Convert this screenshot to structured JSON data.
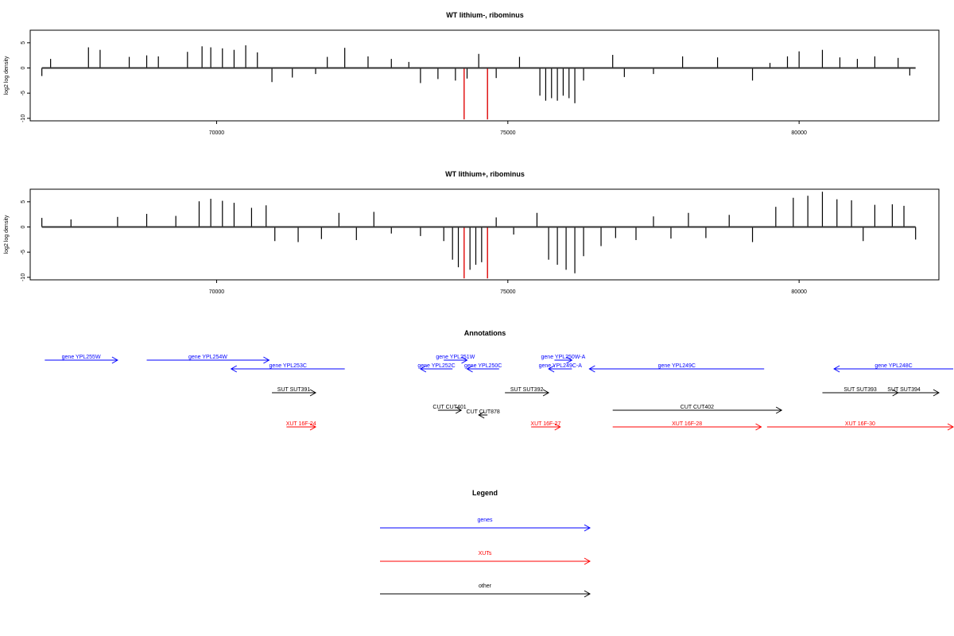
{
  "chart_data": [
    {
      "type": "bar",
      "title": "WT lithium-, ribominus",
      "xlabel": "",
      "ylabel": "log2 log density",
      "xlim": [
        66800,
        82400
      ],
      "ylim": [
        -10.5,
        7.5
      ],
      "xticks": [
        70000,
        75000,
        80000
      ],
      "yticks": [
        5,
        0,
        -5,
        -10
      ],
      "baseline": 0,
      "bars": [
        [
          67000,
          -1.6
        ],
        [
          67150,
          1.8
        ],
        [
          67800,
          4.1
        ],
        [
          68000,
          3.6
        ],
        [
          68500,
          2.2
        ],
        [
          68800,
          2.5
        ],
        [
          69000,
          2.3
        ],
        [
          69500,
          3.2
        ],
        [
          69750,
          4.3
        ],
        [
          69900,
          4.1
        ],
        [
          70100,
          3.9
        ],
        [
          70300,
          3.6
        ],
        [
          70500,
          4.5
        ],
        [
          70700,
          3.1
        ],
        [
          70950,
          -2.8
        ],
        [
          71300,
          -1.9
        ],
        [
          71700,
          -1.2
        ],
        [
          71900,
          2.2
        ],
        [
          72200,
          4.0
        ],
        [
          72600,
          2.3
        ],
        [
          73000,
          1.8
        ],
        [
          73300,
          1.2
        ],
        [
          73500,
          -3.0
        ],
        [
          73800,
          -2.2
        ],
        [
          74100,
          -2.5
        ],
        [
          74250,
          -10.2
        ],
        [
          74300,
          -2.1
        ],
        [
          74500,
          2.8
        ],
        [
          74650,
          -10.2
        ],
        [
          74800,
          -2.0
        ],
        [
          75200,
          2.2
        ],
        [
          75550,
          -5.5
        ],
        [
          75650,
          -6.5
        ],
        [
          75750,
          -6.0
        ],
        [
          75850,
          -6.5
        ],
        [
          75950,
          -5.5
        ],
        [
          76050,
          -6.0
        ],
        [
          76150,
          -7.0
        ],
        [
          76300,
          -2.5
        ],
        [
          76800,
          2.6
        ],
        [
          77000,
          -1.8
        ],
        [
          77500,
          -1.2
        ],
        [
          78000,
          2.3
        ],
        [
          78600,
          2.1
        ],
        [
          79200,
          -2.5
        ],
        [
          79500,
          1.0
        ],
        [
          79800,
          2.3
        ],
        [
          80000,
          3.3
        ],
        [
          80400,
          3.6
        ],
        [
          80700,
          2.1
        ],
        [
          81000,
          1.8
        ],
        [
          81300,
          2.3
        ],
        [
          81700,
          2.0
        ],
        [
          81900,
          -1.5
        ]
      ],
      "highlight_bars": [
        [
          74250,
          -10.2
        ],
        [
          74650,
          -10.2
        ]
      ]
    },
    {
      "type": "bar",
      "title": "WT lithium+, ribominus",
      "xlabel": "",
      "ylabel": "log2 log density",
      "xlim": [
        66800,
        82400
      ],
      "ylim": [
        -10.5,
        7.5
      ],
      "xticks": [
        70000,
        75000,
        80000
      ],
      "yticks": [
        5,
        0,
        -5,
        -10
      ],
      "baseline": 0,
      "bars": [
        [
          67000,
          1.8
        ],
        [
          67500,
          1.5
        ],
        [
          68300,
          2.0
        ],
        [
          68800,
          2.6
        ],
        [
          69300,
          2.2
        ],
        [
          69700,
          5.1
        ],
        [
          69900,
          5.6
        ],
        [
          70100,
          5.2
        ],
        [
          70300,
          4.8
        ],
        [
          70600,
          3.8
        ],
        [
          70850,
          4.3
        ],
        [
          71000,
          -2.8
        ],
        [
          71400,
          -3.0
        ],
        [
          71800,
          -2.4
        ],
        [
          72100,
          2.8
        ],
        [
          72400,
          -2.6
        ],
        [
          72700,
          3.0
        ],
        [
          73000,
          -1.3
        ],
        [
          73500,
          -1.8
        ],
        [
          73900,
          -2.8
        ],
        [
          74050,
          -6.5
        ],
        [
          74150,
          -8.0
        ],
        [
          74250,
          -10.2
        ],
        [
          74350,
          -8.5
        ],
        [
          74450,
          -7.5
        ],
        [
          74550,
          -7.0
        ],
        [
          74650,
          -10.2
        ],
        [
          74800,
          1.9
        ],
        [
          75100,
          -1.5
        ],
        [
          75500,
          2.8
        ],
        [
          75700,
          -6.5
        ],
        [
          75850,
          -7.5
        ],
        [
          76000,
          -8.5
        ],
        [
          76150,
          -9.2
        ],
        [
          76300,
          -5.8
        ],
        [
          76600,
          -3.8
        ],
        [
          76850,
          -2.2
        ],
        [
          77200,
          -2.6
        ],
        [
          77500,
          2.1
        ],
        [
          77800,
          -2.3
        ],
        [
          78100,
          2.8
        ],
        [
          78400,
          -2.2
        ],
        [
          78800,
          2.4
        ],
        [
          79200,
          -3.0
        ],
        [
          79600,
          4.0
        ],
        [
          79900,
          5.8
        ],
        [
          80150,
          6.2
        ],
        [
          80400,
          7.0
        ],
        [
          80650,
          5.5
        ],
        [
          80900,
          5.3
        ],
        [
          81100,
          -2.8
        ],
        [
          81300,
          4.4
        ],
        [
          81600,
          4.5
        ],
        [
          81800,
          4.2
        ],
        [
          82000,
          -2.5
        ]
      ],
      "highlight_bars": [
        [
          74250,
          -10.2
        ],
        [
          74650,
          -10.2
        ]
      ]
    }
  ],
  "annotations": {
    "title": "Annotations",
    "features": [
      {
        "label": "gene YPL255W",
        "start": 67050,
        "end": 68300,
        "row": 0,
        "cls": "gene"
      },
      {
        "label": "gene YPL254W",
        "start": 68800,
        "end": 70900,
        "row": 0,
        "cls": "gene"
      },
      {
        "label": "gene YPL253C",
        "start": 72200,
        "end": 70250,
        "row": 1,
        "cls": "gene"
      },
      {
        "label": "gene YPL251W",
        "start": 73900,
        "end": 74300,
        "row": 0,
        "cls": "gene"
      },
      {
        "label": "gene YPL252C",
        "start": 74050,
        "end": 73500,
        "row": 1,
        "cls": "gene"
      },
      {
        "label": "gene YPL250C",
        "start": 74850,
        "end": 74300,
        "row": 1,
        "cls": "gene"
      },
      {
        "label": "gene YPL250W-A",
        "start": 75800,
        "end": 76100,
        "row": 0,
        "cls": "gene"
      },
      {
        "label": "gene YPL249C-A",
        "start": 76100,
        "end": 75700,
        "row": 1,
        "cls": "gene"
      },
      {
        "label": "gene YPL249C",
        "start": 79400,
        "end": 76400,
        "row": 1,
        "cls": "gene"
      },
      {
        "label": "gene YPL248C",
        "start": 83000,
        "end": 80600,
        "row": 1,
        "cls": "gene"
      },
      {
        "label": "SUT SUT391",
        "start": 70950,
        "end": 71700,
        "row": 2,
        "cls": "other"
      },
      {
        "label": "SUT SUT392",
        "start": 74950,
        "end": 75700,
        "row": 2,
        "cls": "other"
      },
      {
        "label": "SUT SUT393",
        "start": 80400,
        "end": 81700,
        "row": 2,
        "cls": "other"
      },
      {
        "label": "SUT SUT394",
        "start": 81200,
        "end": 82400,
        "row": 2,
        "cls": "other"
      },
      {
        "label": "CUT CUT401",
        "start": 73800,
        "end": 74200,
        "row": 3,
        "cls": "other"
      },
      {
        "label": "CUT CUT402",
        "start": 76800,
        "end": 79700,
        "row": 3,
        "cls": "other"
      },
      {
        "label": "CUT CUT878",
        "start": 74650,
        "end": 74500,
        "row": 4,
        "cls": "other"
      },
      {
        "label": "XUT 16F-24",
        "start": 71200,
        "end": 71700,
        "row": 5,
        "cls": "xut"
      },
      {
        "label": "XUT 16F-27",
        "start": 75400,
        "end": 75900,
        "row": 5,
        "cls": "xut"
      },
      {
        "label": "XUT 16F-28",
        "start": 76800,
        "end": 79350,
        "row": 5,
        "cls": "xut"
      },
      {
        "label": "XUT 16F-30",
        "start": 79450,
        "end": 82900,
        "row": 5,
        "cls": "xut"
      }
    ]
  },
  "legend": {
    "title": "Legend",
    "items": [
      {
        "label": "genes",
        "cls": "gene"
      },
      {
        "label": "XUTs",
        "cls": "xut"
      },
      {
        "label": "other",
        "cls": "other"
      }
    ]
  },
  "colors": {
    "gene": "#0000ff",
    "xut": "#ff0000",
    "other": "#000000",
    "bars": "#000000",
    "highlight": "#ff0000",
    "frame": "#000000"
  }
}
